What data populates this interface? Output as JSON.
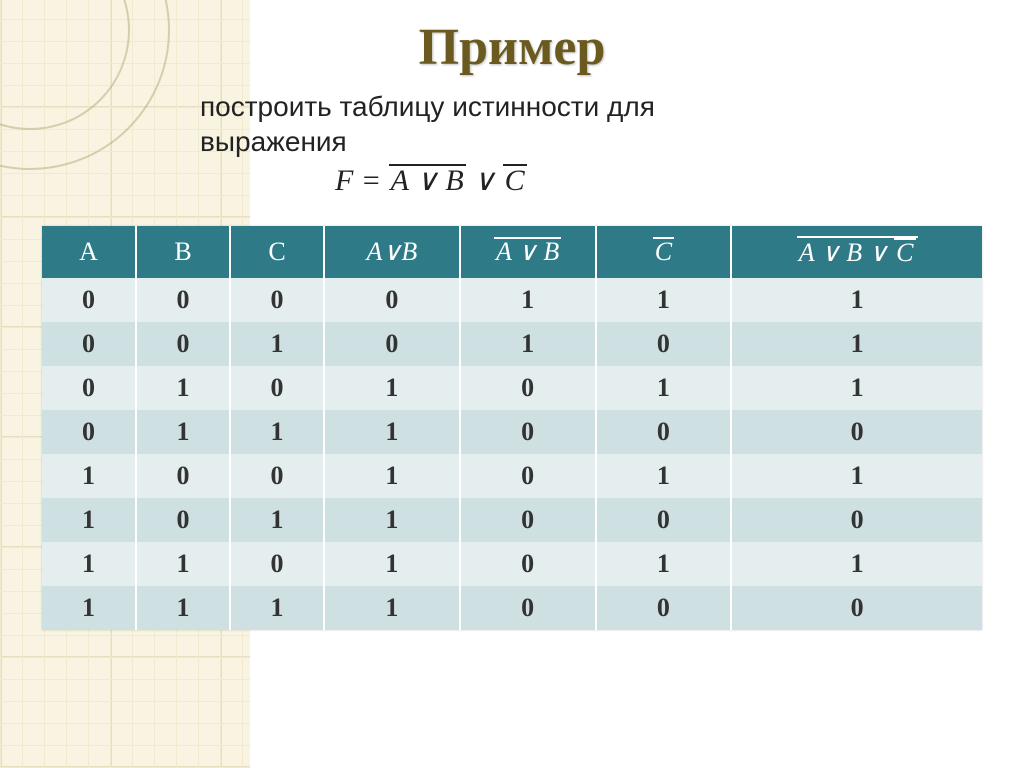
{
  "title": "Пример",
  "subtitle_line1": "построить таблицу истинности для",
  "subtitle_line2": "выражения",
  "formula_prefix": "F = ",
  "formula_part1": "A ∨ B",
  "formula_or": " ∨ ",
  "formula_part2": "C",
  "headers": {
    "A": "A",
    "B": "B",
    "C": "C",
    "AvB": "A∨B",
    "notAvB": "A ∨ B",
    "notC": "C",
    "full": "A ∨ B ∨ C",
    "full_c_only": "C"
  },
  "rows": [
    [
      "0",
      "0",
      "0",
      "0",
      "1",
      "1",
      "1"
    ],
    [
      "0",
      "0",
      "1",
      "0",
      "1",
      "0",
      "1"
    ],
    [
      "0",
      "1",
      "0",
      "1",
      "0",
      "1",
      "1"
    ],
    [
      "0",
      "1",
      "1",
      "1",
      "0",
      "0",
      "0"
    ],
    [
      "1",
      "0",
      "0",
      "1",
      "0",
      "1",
      "1"
    ],
    [
      "1",
      "0",
      "1",
      "1",
      "0",
      "0",
      "0"
    ],
    [
      "1",
      "1",
      "0",
      "1",
      "0",
      "1",
      "1"
    ],
    [
      "1",
      "1",
      "1",
      "1",
      "0",
      "0",
      "0"
    ]
  ],
  "colors": {
    "header_bg": "#2f7a87",
    "row_even": "#e4eeef",
    "row_odd": "#cfe0e3",
    "title_color": "#6b5a1f"
  }
}
